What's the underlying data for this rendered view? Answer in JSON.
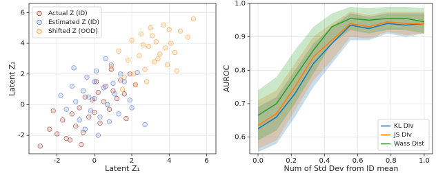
{
  "chart_data": [
    {
      "type": "scatter",
      "xlabel": "Latent Z₁",
      "ylabel": "Latent Z₂",
      "xlim": [
        -3.5,
        6.5
      ],
      "xticks": [
        -2,
        0,
        2,
        4,
        6
      ],
      "ylim": [
        -3.2,
        6.6
      ],
      "yticks": [
        -2,
        0,
        2,
        4,
        6
      ],
      "grid": true,
      "legend": "upper left",
      "series": [
        {
          "name": "Actual Z (ID)",
          "color": "#a0453a",
          "x": [
            -2.9,
            -2.4,
            -2.0,
            -1.7,
            -1.5,
            -1.2,
            -1.0,
            -0.8,
            -0.6,
            -0.5,
            -0.3,
            -0.1,
            0.0,
            0.2,
            0.3,
            0.5,
            0.6,
            0.8,
            1.0,
            1.2,
            1.4,
            1.6,
            1.9,
            2.2,
            -1.3,
            -0.7,
            0.1,
            0.9,
            -2.2,
            1.7
          ],
          "y": [
            -2.7,
            -1.6,
            -1.9,
            -1.0,
            -2.2,
            -0.6,
            -1.4,
            -0.2,
            -1.8,
            0.5,
            -0.8,
            0.3,
            -0.5,
            0.8,
            -1.2,
            0.2,
            1.2,
            -0.3,
            0.9,
            0.4,
            1.6,
            0.7,
            2.0,
            1.3,
            -2.3,
            -2.6,
            1.5,
            2.3,
            -0.4,
            -0.9
          ]
        },
        {
          "name": "Estimated Z (ID)",
          "color": "#5b7fd8",
          "x": [
            -1.8,
            -1.5,
            -1.2,
            -1.0,
            -0.8,
            -0.6,
            -0.4,
            -0.2,
            0.0,
            0.1,
            0.3,
            0.5,
            0.7,
            0.9,
            1.1,
            1.3,
            1.6,
            1.9,
            2.3,
            2.7,
            -0.5,
            0.2,
            0.6,
            -1.1,
            1.4,
            0.0,
            -0.3,
            0.8,
            1.0,
            2.0
          ],
          "y": [
            0.6,
            -0.3,
            1.2,
            0.2,
            -1.0,
            0.9,
            1.8,
            -0.4,
            0.4,
            2.2,
            -0.8,
            1.1,
            0.0,
            2.6,
            0.7,
            -0.6,
            1.5,
            0.3,
            2.1,
            -1.3,
            -1.6,
            -2.0,
            3.0,
            2.4,
            2.0,
            1.5,
            0.5,
            -1.1,
            1.4,
            -0.2
          ]
        },
        {
          "name": "Shifted Z (OOD)",
          "color": "#ffa040",
          "x": [
            0.9,
            1.3,
            1.6,
            1.8,
            2.0,
            2.2,
            2.4,
            2.5,
            2.7,
            2.9,
            3.0,
            3.2,
            3.3,
            3.5,
            3.7,
            3.9,
            4.1,
            4.3,
            4.6,
            5.0,
            5.3,
            2.1,
            2.8,
            3.4,
            3.8,
            4.4,
            1.5,
            2.6,
            3.1,
            4.0
          ],
          "y": [
            2.5,
            3.5,
            1.8,
            2.9,
            4.2,
            1.3,
            3.2,
            4.6,
            2.3,
            3.8,
            5.0,
            2.8,
            4.1,
            3.3,
            5.2,
            2.6,
            4.0,
            3.4,
            4.8,
            4.4,
            5.6,
            2.0,
            1.5,
            3.0,
            3.7,
            2.2,
            1.0,
            3.9,
            4.5,
            4.9
          ]
        }
      ]
    },
    {
      "type": "line",
      "xlabel": "Num of Std Dev from ID mean",
      "ylabel": "AUROC",
      "xlim": [
        -0.05,
        1.05
      ],
      "xticks": [
        {
          "value": 0,
          "label": "0.0"
        },
        0.2,
        0.4,
        0.6,
        0.8,
        {
          "value": 1,
          "label": "1.0"
        }
      ],
      "ylim": [
        0.55,
        1.0
      ],
      "yticks": [
        0.6,
        0.7,
        0.8,
        0.9,
        {
          "value": 1,
          "label": "1.0"
        }
      ],
      "grid": true,
      "legend": "lower right",
      "x": [
        0,
        0.111,
        0.222,
        0.333,
        0.444,
        0.556,
        0.667,
        0.778,
        0.889,
        1.0
      ],
      "series": [
        {
          "name": "KL Div",
          "color": "#1f77b4",
          "values": [
            0.625,
            0.66,
            0.73,
            0.82,
            0.88,
            0.935,
            0.925,
            0.94,
            0.935,
            0.94
          ],
          "lower": [
            0.555,
            0.58,
            0.66,
            0.75,
            0.82,
            0.89,
            0.89,
            0.91,
            0.9,
            0.91
          ],
          "upper": [
            0.69,
            0.72,
            0.8,
            0.88,
            0.93,
            0.97,
            0.96,
            0.97,
            0.97,
            0.97
          ]
        },
        {
          "name": "JS Div",
          "color": "#ff7f0e",
          "values": [
            0.635,
            0.67,
            0.75,
            0.84,
            0.89,
            0.94,
            0.93,
            0.945,
            0.94,
            0.94
          ],
          "lower": [
            0.565,
            0.59,
            0.68,
            0.77,
            0.83,
            0.9,
            0.895,
            0.915,
            0.905,
            0.91
          ],
          "upper": [
            0.71,
            0.74,
            0.82,
            0.9,
            0.94,
            0.975,
            0.965,
            0.975,
            0.975,
            0.975
          ]
        },
        {
          "name": "Wass Dist",
          "color": "#2ca02c",
          "values": [
            0.665,
            0.7,
            0.78,
            0.86,
            0.93,
            0.955,
            0.95,
            0.955,
            0.955,
            0.945
          ],
          "lower": [
            0.59,
            0.62,
            0.7,
            0.79,
            0.88,
            0.92,
            0.91,
            0.92,
            0.92,
            0.91
          ],
          "upper": [
            0.74,
            0.78,
            0.86,
            0.93,
            0.97,
            0.99,
            0.985,
            0.99,
            0.99,
            0.985
          ]
        }
      ]
    }
  ]
}
